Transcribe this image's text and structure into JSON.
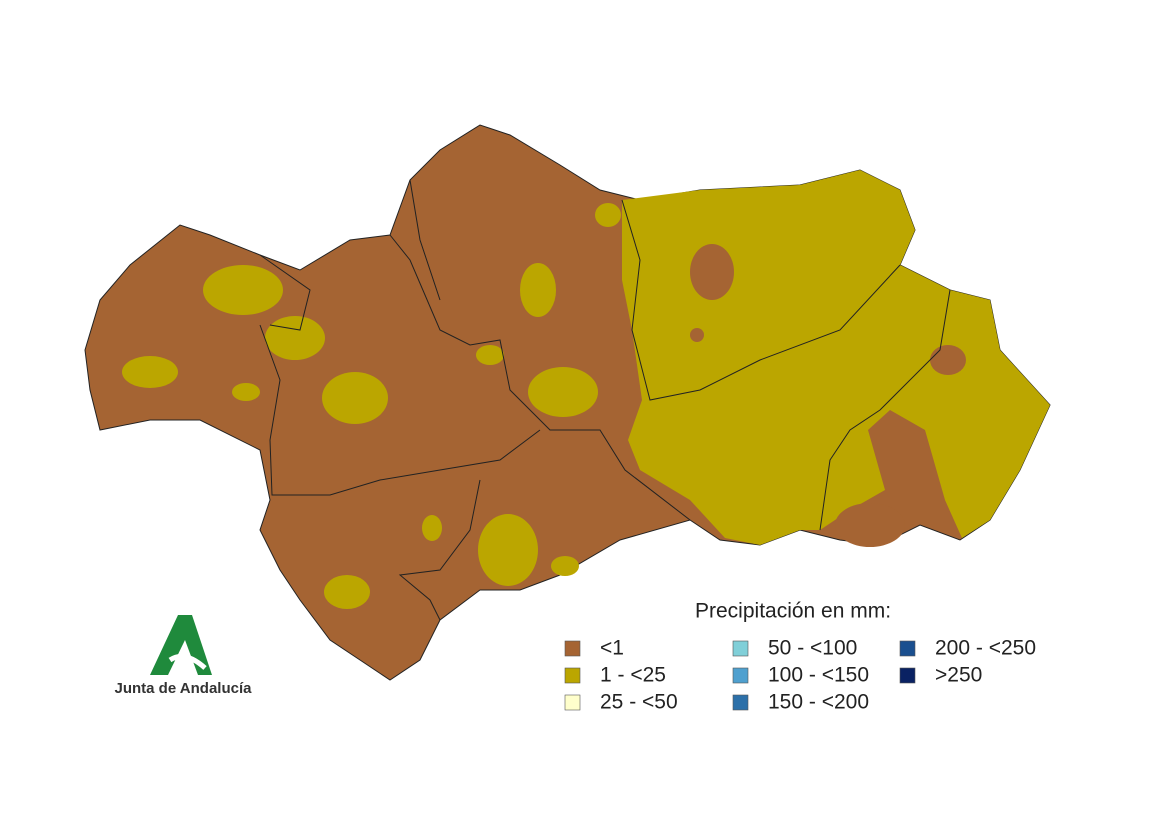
{
  "legend": {
    "title": "Precipitación en mm:",
    "items": [
      {
        "label": "<1",
        "color": "#a56433"
      },
      {
        "label": "1 - <25",
        "color": "#bba600"
      },
      {
        "label": "25 - <50",
        "color": "#ffffcc"
      },
      {
        "label": "50 - <100",
        "color": "#80cfd8"
      },
      {
        "label": "100 - <150",
        "color": "#4fa0cf"
      },
      {
        "label": "150 - <200",
        "color": "#2c70a9"
      },
      {
        "label": "200 - <250",
        "color": "#1a4f8f"
      },
      {
        "label": ">250",
        "color": "#0a2263"
      }
    ]
  },
  "logo": {
    "text": "Junta de Andalucía"
  }
}
